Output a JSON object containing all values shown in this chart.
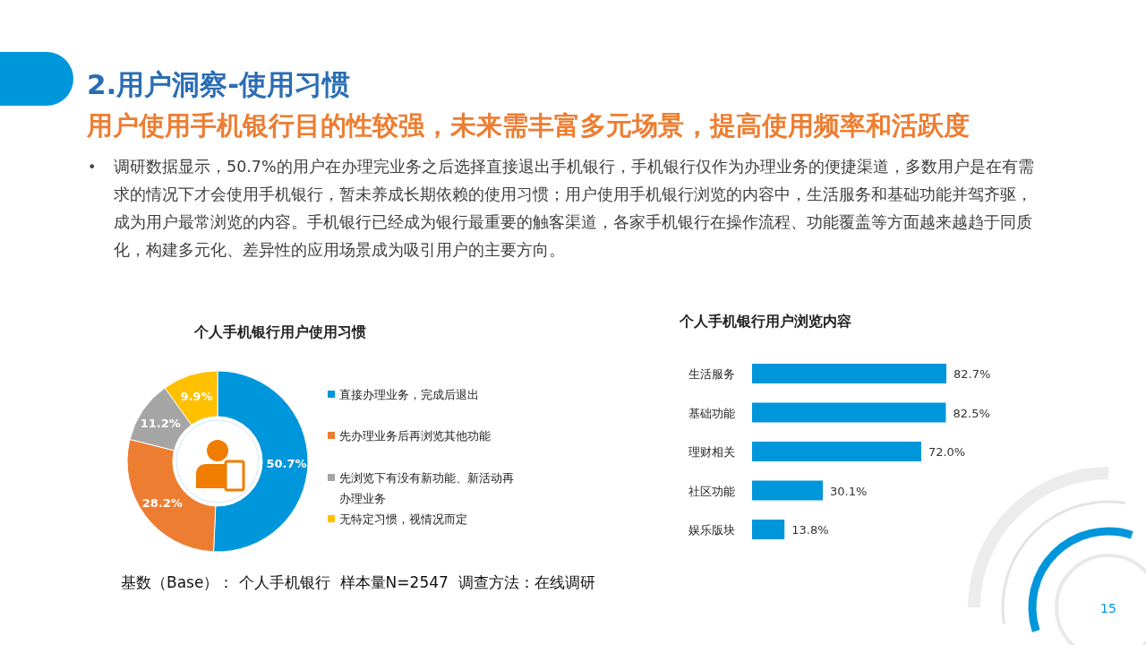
{
  "chart_data": [
    {
      "type": "other",
      "title": "2.用户洞察-使用习惯",
      "subtitle": "用户使用手机银行目的性较强，未来需丰富多元场景，提高使用频率和活跃度",
      "annotations": [
        "•",
        "调研数据显示，50.7%的用户在办理完业务之后选择直接退出手机银行，手机银行仅作为办理业务的便捷渠道，多数用户是在有需求的情况下才会使用手机银行，暂未养成长期依赖的使用习惯；用户使用手机银行浏览的内容中，生活服务和基础功能并驾齐驱，成为用户最常浏览的内容。手机银行已经成为银行最重要的触客渠道，各家手机银行在操作流程、功能覆盖等方面越来越趋于同质化，构建多元化、差异性的应用场景成为吸引用户的主要方向。",
        "15"
      ]
    },
    {
      "type": "donut",
      "title": "个人手机银行用户使用习惯",
      "categories": [
        "直接办理业务，完成后退出",
        "先办理业务后再浏览其他功能",
        "先浏览下有没有新功能、新活动再办理业务",
        "无特定习惯，视情况而定"
      ],
      "values": [
        50.7,
        28.2,
        11.2,
        9.9
      ],
      "colors": [
        "#0096db",
        "#ed7d31",
        "#a5a5a5",
        "#ffc000"
      ],
      "value_labels": [
        "50.7%",
        "28.2%",
        "11.2%",
        "9.9%"
      ],
      "legend": "right",
      "annotations": [
        "基数（Base）： 个人手机银行  样本量N=2547  调查方法：在线调研"
      ]
    },
    {
      "type": "bar",
      "orientation": "horizontal",
      "title": "个人手机银行用户浏览内容",
      "categories": [
        "生活服务",
        "基础功能",
        "理财相关",
        "社区功能",
        "娱乐版块"
      ],
      "values": [
        82.7,
        82.5,
        72.0,
        30.1,
        13.8
      ],
      "color": "#0096db",
      "value_labels": [
        "82.7%",
        "82.5%",
        "72.0%",
        "30.1%",
        "13.8%"
      ]
    }
  ]
}
